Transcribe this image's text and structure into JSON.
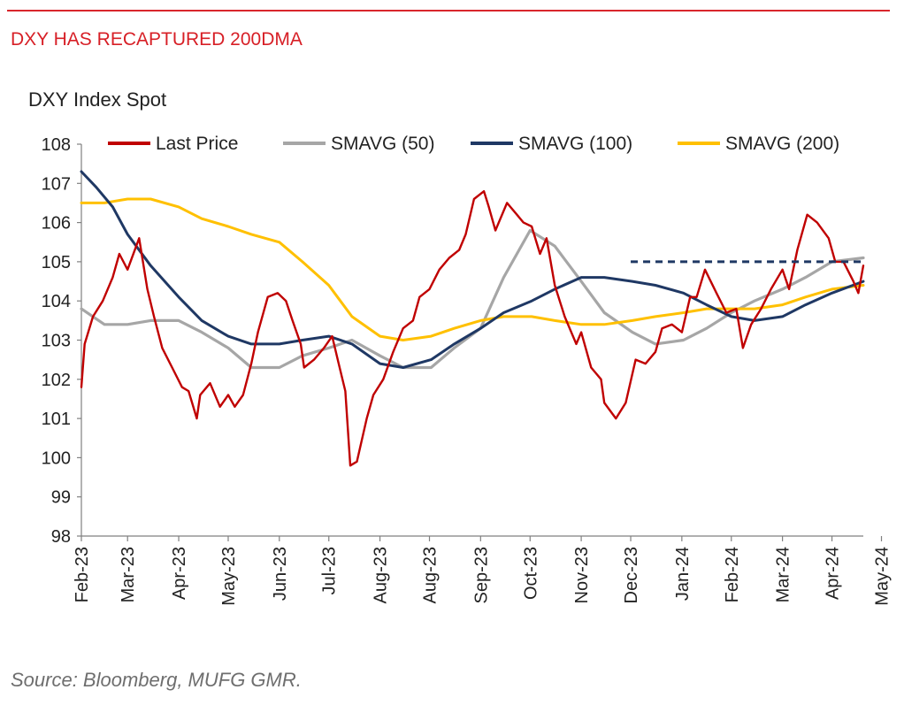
{
  "header": {
    "title": "DXY HAS RECAPTURED 200DMA",
    "y_title": "DXY Index Spot",
    "source": "Source: Bloomberg, MUFG GMR."
  },
  "colors": {
    "accent_red": "#d9262c",
    "last_price": "#c00000",
    "sma50": "#a6a6a6",
    "sma100": "#1f3864",
    "sma200": "#ffc000",
    "resistance": "#1f3864"
  },
  "chart_data": {
    "type": "line",
    "title": "DXY HAS RECAPTURED 200DMA",
    "ylabel": "DXY Index Spot",
    "ylim": [
      98,
      108
    ],
    "yticks": [
      98,
      99,
      100,
      101,
      102,
      103,
      104,
      105,
      106,
      107,
      108
    ],
    "xlim": [
      "2023-02-01",
      "2024-05-20"
    ],
    "xticks": [
      {
        "date": "2023-02-01",
        "label": "Feb-23"
      },
      {
        "date": "2023-03-01",
        "label": "Mar-23"
      },
      {
        "date": "2023-04-01",
        "label": "Apr-23"
      },
      {
        "date": "2023-05-01",
        "label": "May-23"
      },
      {
        "date": "2023-06-01",
        "label": "Jun-23"
      },
      {
        "date": "2023-07-01",
        "label": "Jul-23"
      },
      {
        "date": "2023-08-01",
        "label": "Aug-23"
      },
      {
        "date": "2023-08-31",
        "label": "Aug-23"
      },
      {
        "date": "2023-10-01",
        "label": "Sep-23"
      },
      {
        "date": "2023-10-31",
        "label": "Oct-23"
      },
      {
        "date": "2023-12-01",
        "label": "Nov-23"
      },
      {
        "date": "2023-12-31",
        "label": "Dec-23"
      },
      {
        "date": "2024-01-31",
        "label": "Jan-24"
      },
      {
        "date": "2024-03-01",
        "label": "Feb-24"
      },
      {
        "date": "2024-04-01",
        "label": "Mar-24"
      },
      {
        "date": "2024-05-01",
        "label": "Apr-24"
      },
      {
        "date": "2024-05-31",
        "label": "May-24"
      }
    ],
    "legend_position": "top",
    "series": [
      {
        "name": "Last Price",
        "color": "#c00000",
        "x": [
          "2023-02-01",
          "2023-02-03",
          "2023-02-08",
          "2023-02-14",
          "2023-02-20",
          "2023-02-24",
          "2023-03-01",
          "2023-03-08",
          "2023-03-13",
          "2023-03-17",
          "2023-03-22",
          "2023-03-28",
          "2023-04-03",
          "2023-04-07",
          "2023-04-12",
          "2023-04-14",
          "2023-04-20",
          "2023-04-26",
          "2023-05-01",
          "2023-05-05",
          "2023-05-10",
          "2023-05-15",
          "2023-05-19",
          "2023-05-25",
          "2023-05-31",
          "2023-06-05",
          "2023-06-09",
          "2023-06-14",
          "2023-06-16",
          "2023-06-22",
          "2023-06-28",
          "2023-07-03",
          "2023-07-07",
          "2023-07-11",
          "2023-07-14",
          "2023-07-18",
          "2023-07-24",
          "2023-07-28",
          "2023-08-03",
          "2023-08-09",
          "2023-08-15",
          "2023-08-21",
          "2023-08-25",
          "2023-08-31",
          "2023-09-06",
          "2023-09-12",
          "2023-09-18",
          "2023-09-22",
          "2023-09-27",
          "2023-10-03",
          "2023-10-06",
          "2023-10-10",
          "2023-10-17",
          "2023-10-23",
          "2023-10-27",
          "2023-11-01",
          "2023-11-06",
          "2023-11-10",
          "2023-11-15",
          "2023-11-21",
          "2023-11-28",
          "2023-12-01",
          "2023-12-07",
          "2023-12-13",
          "2023-12-15",
          "2023-12-22",
          "2023-12-28",
          "2024-01-03",
          "2024-01-09",
          "2024-01-15",
          "2024-01-19",
          "2024-01-25",
          "2024-01-31",
          "2024-02-05",
          "2024-02-09",
          "2024-02-14",
          "2024-02-21",
          "2024-02-27",
          "2024-03-04",
          "2024-03-08",
          "2024-03-13",
          "2024-03-19",
          "2024-03-25",
          "2024-04-01",
          "2024-04-05",
          "2024-04-10",
          "2024-04-16",
          "2024-04-22",
          "2024-04-29",
          "2024-05-03",
          "2024-05-08",
          "2024-05-14",
          "2024-05-17",
          "2024-05-20"
        ],
        "y": [
          101.8,
          102.9,
          103.6,
          104.0,
          104.6,
          105.2,
          104.8,
          105.6,
          104.3,
          103.6,
          102.8,
          102.3,
          101.8,
          101.7,
          101.0,
          101.6,
          101.9,
          101.3,
          101.6,
          101.3,
          101.6,
          102.4,
          103.2,
          104.1,
          104.2,
          104.0,
          103.5,
          102.9,
          102.3,
          102.5,
          102.8,
          103.1,
          102.4,
          101.7,
          99.8,
          99.9,
          101.0,
          101.6,
          102.0,
          102.7,
          103.3,
          103.5,
          104.1,
          104.3,
          104.8,
          105.1,
          105.3,
          105.7,
          106.6,
          106.8,
          106.4,
          105.8,
          106.5,
          106.2,
          106.0,
          105.9,
          105.2,
          105.6,
          104.4,
          103.6,
          102.9,
          103.2,
          102.3,
          102.0,
          101.4,
          101.0,
          101.4,
          102.5,
          102.4,
          102.7,
          103.3,
          103.4,
          103.2,
          104.1,
          104.1,
          104.8,
          104.2,
          103.7,
          103.8,
          102.8,
          103.4,
          103.8,
          104.3,
          104.8,
          104.3,
          105.3,
          106.2,
          106.0,
          105.6,
          105.0,
          105.0,
          104.5,
          104.2,
          104.9
        ]
      },
      {
        "name": "SMAVG (50)",
        "color": "#a6a6a6",
        "x": [
          "2023-02-01",
          "2023-02-15",
          "2023-03-01",
          "2023-03-15",
          "2023-04-01",
          "2023-04-15",
          "2023-05-01",
          "2023-05-15",
          "2023-06-01",
          "2023-06-15",
          "2023-07-01",
          "2023-07-15",
          "2023-08-01",
          "2023-08-15",
          "2023-09-01",
          "2023-09-15",
          "2023-10-01",
          "2023-10-15",
          "2023-10-31",
          "2023-11-15",
          "2023-12-01",
          "2023-12-15",
          "2024-01-01",
          "2024-01-15",
          "2024-02-01",
          "2024-02-15",
          "2024-03-01",
          "2024-03-15",
          "2024-04-01",
          "2024-04-15",
          "2024-05-01",
          "2024-05-20"
        ],
        "y": [
          103.8,
          103.4,
          103.4,
          103.5,
          103.5,
          103.2,
          102.8,
          102.3,
          102.3,
          102.6,
          102.8,
          103.0,
          102.6,
          102.3,
          102.3,
          102.8,
          103.3,
          104.6,
          105.8,
          105.4,
          104.5,
          103.7,
          103.2,
          102.9,
          103.0,
          103.3,
          103.7,
          104.0,
          104.3,
          104.6,
          105.0,
          105.1
        ]
      },
      {
        "name": "SMAVG (100)",
        "color": "#1f3864",
        "x": [
          "2023-02-01",
          "2023-02-10",
          "2023-02-20",
          "2023-03-01",
          "2023-03-15",
          "2023-04-01",
          "2023-04-15",
          "2023-05-01",
          "2023-05-15",
          "2023-06-01",
          "2023-06-15",
          "2023-07-01",
          "2023-07-15",
          "2023-08-01",
          "2023-08-15",
          "2023-09-01",
          "2023-09-15",
          "2023-10-01",
          "2023-10-15",
          "2023-11-01",
          "2023-11-15",
          "2023-12-01",
          "2023-12-15",
          "2024-01-01",
          "2024-01-15",
          "2024-02-01",
          "2024-02-15",
          "2024-03-01",
          "2024-03-15",
          "2024-04-01",
          "2024-04-15",
          "2024-05-01",
          "2024-05-20"
        ],
        "y": [
          107.3,
          106.9,
          106.4,
          105.7,
          104.9,
          104.1,
          103.5,
          103.1,
          102.9,
          102.9,
          103.0,
          103.1,
          102.9,
          102.4,
          102.3,
          102.5,
          102.9,
          103.3,
          103.7,
          104.0,
          104.3,
          104.6,
          104.6,
          104.5,
          104.4,
          104.2,
          103.9,
          103.6,
          103.5,
          103.6,
          103.9,
          104.2,
          104.5
        ]
      },
      {
        "name": "SMAVG (200)",
        "color": "#ffc000",
        "x": [
          "2023-02-01",
          "2023-02-15",
          "2023-03-01",
          "2023-03-15",
          "2023-04-01",
          "2023-04-15",
          "2023-05-01",
          "2023-05-15",
          "2023-06-01",
          "2023-06-15",
          "2023-07-01",
          "2023-07-15",
          "2023-08-01",
          "2023-08-15",
          "2023-09-01",
          "2023-09-15",
          "2023-10-01",
          "2023-10-15",
          "2023-11-01",
          "2023-11-15",
          "2023-12-01",
          "2023-12-15",
          "2024-01-01",
          "2024-01-15",
          "2024-02-01",
          "2024-02-15",
          "2024-03-01",
          "2024-03-15",
          "2024-04-01",
          "2024-04-15",
          "2024-05-01",
          "2024-05-20"
        ],
        "y": [
          106.5,
          106.5,
          106.6,
          106.6,
          106.4,
          106.1,
          105.9,
          105.7,
          105.5,
          105.0,
          104.4,
          103.6,
          103.1,
          103.0,
          103.1,
          103.3,
          103.5,
          103.6,
          103.6,
          103.5,
          103.4,
          103.4,
          103.5,
          103.6,
          103.7,
          103.8,
          103.8,
          103.8,
          103.9,
          104.1,
          104.3,
          104.4
        ]
      }
    ],
    "annotations": [
      {
        "type": "dashed-hline",
        "y": 105.0,
        "x_start": "2023-12-31",
        "x_end": "2024-05-20",
        "color": "#1f3864"
      }
    ]
  }
}
